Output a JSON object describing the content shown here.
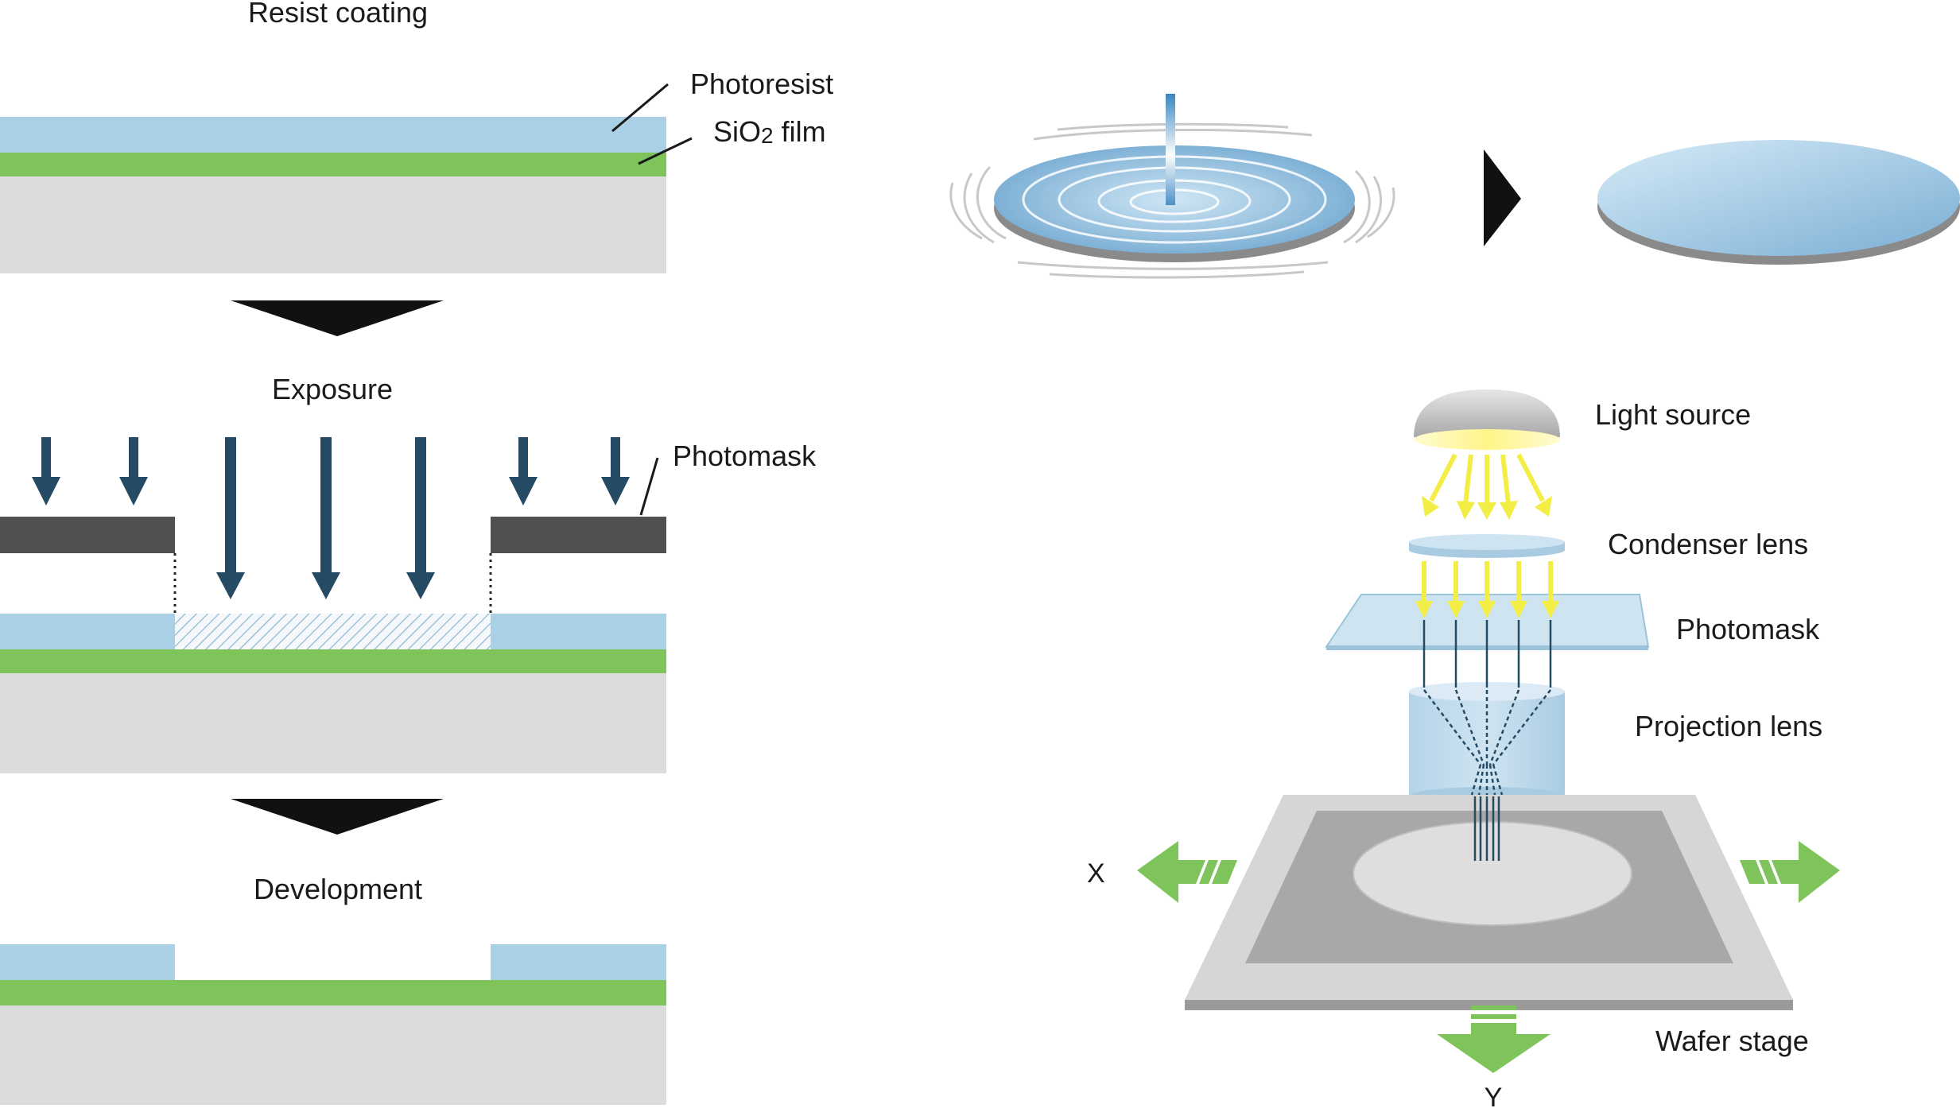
{
  "left_panel": {
    "step1_title": "Resist coating",
    "photoresist_label": "Photoresist",
    "sio2_label_main": "SiO",
    "sio2_label_sub": "2",
    "sio2_label_tail": " film",
    "step2_title": "Exposure",
    "photomask_label": "Photomask",
    "step3_title": "Development"
  },
  "right_panel": {
    "light_source_label": "Light source",
    "condenser_lens_label": "Condenser lens",
    "photomask_label": "Photomask",
    "projection_lens_label": "Projection lens",
    "wafer_stage_label": "Wafer stage",
    "x_axis_label": "X",
    "y_axis_label": "Y"
  },
  "colors": {
    "photoresist": "#a9d0e4",
    "sio2": "#7ec45a",
    "substrate": "#dcdcdc",
    "mask": "#505050",
    "exposure_arrow": "#254a63",
    "light_ray": "#f2ee46",
    "stage_arrow": "#7ec45a"
  }
}
